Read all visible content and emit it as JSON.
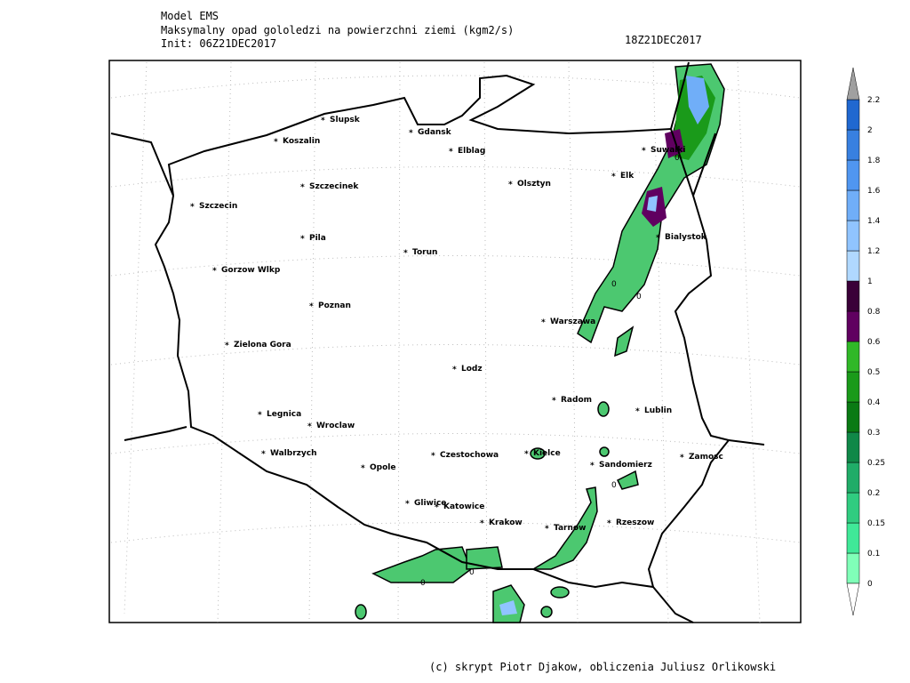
{
  "header": {
    "model": "Model EMS",
    "title": "Maksymalny opad gololedzi na powierzchni ziemi (kgm2/s)",
    "init": "Init: 06Z21DEC2017",
    "valid": "18Z21DEC2017"
  },
  "cities": [
    "Slupsk",
    "Koszalin",
    "Gdansk",
    "Elblag",
    "Suwalki",
    "Szczecinek",
    "Olsztyn",
    "Elk",
    "Szczecin",
    "Pila",
    "Torun",
    "Bialystok",
    "Gorzow Wlkp",
    "Poznan",
    "Warszawa",
    "Zielona Gora",
    "Lodz",
    "Radom",
    "Lublin",
    "Legnica",
    "Wroclaw",
    "Walbrzych",
    "Opole",
    "Czestochowa",
    "Kielce",
    "Sandomierz",
    "Zamosc",
    "Gliwice",
    "Katowice",
    "Krakow",
    "Tarnow",
    "Rzeszow"
  ],
  "contour_label": "0",
  "legend": {
    "levels": [
      0,
      0.1,
      0.15,
      0.2,
      0.25,
      0.3,
      0.4,
      0.5,
      0.6,
      0.8,
      1,
      1.2,
      1.4,
      1.6,
      1.8,
      2,
      2.2
    ],
    "colors": [
      "#80ffb8",
      "#40e898",
      "#30cc80",
      "#20ac68",
      "#108848",
      "#0a7a14",
      "#1a9a1a",
      "#30b828",
      "#600060",
      "#3a0038",
      "#b0d8ff",
      "#90c4ff",
      "#70aef8",
      "#5096f0",
      "#3880e0",
      "#2068d0"
    ],
    "over_color": "#a0a0a0",
    "under_color": "#ffffff"
  },
  "footer": "(c) skrypt Piotr Djakow, obliczenia Juliusz Orlikowski"
}
